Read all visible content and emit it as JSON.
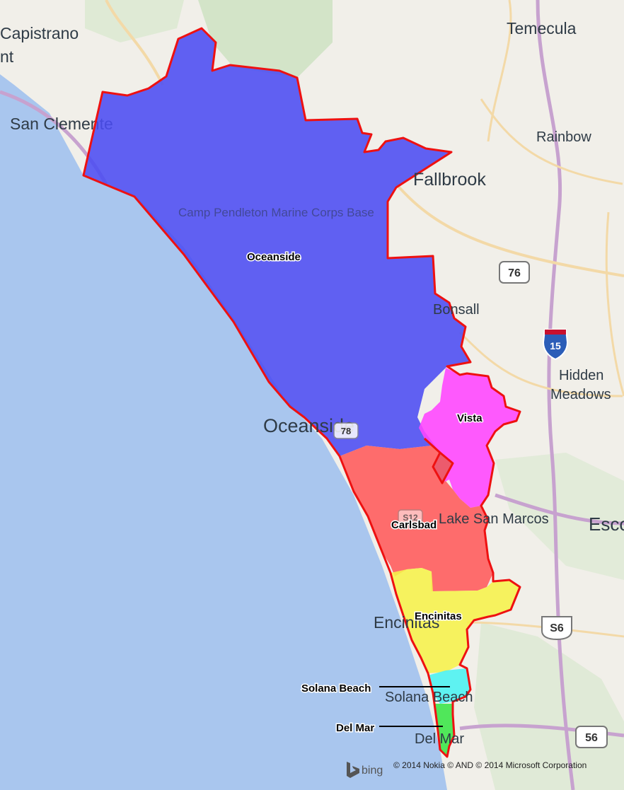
{
  "regions": [
    {
      "name": "Oceanside",
      "color": "#4b4cf2"
    },
    {
      "name": "Vista",
      "color": "#ff44ff"
    },
    {
      "name": "Carlsbad",
      "color": "#ff5a5a"
    },
    {
      "name": "Encinitas",
      "color": "#f6f24a"
    },
    {
      "name": "Solana Beach",
      "color": "#4ef2f2"
    },
    {
      "name": "Del Mar",
      "color": "#3ee64a"
    }
  ],
  "boundary_color": "#ee1111",
  "basemap_places": {
    "capistrano": "Capistrano",
    "capistrano_suffix": "nt",
    "san_clemente": "San Clemente",
    "temecula": "Temecula",
    "rainbow": "Rainbow",
    "fallbrook": "Fallbrook",
    "camp_pendleton": "Camp Pendleton Marine Corps Base",
    "bonsall": "Bonsall",
    "hidden": "Hidden",
    "meadows": "Meadows",
    "oceanside_city": "Oceanside",
    "lake_san_marcos": "Lake San Marcos",
    "esco": "Esco",
    "encinitas_city": "Encinitas",
    "solana_beach_city": "Solana Beach",
    "del_mar_city": "Del Mar"
  },
  "routes": {
    "r76": "76",
    "i15": "15",
    "r78": "78",
    "s6": "S6",
    "s56": "56",
    "s12": "S12"
  },
  "attribution": {
    "logo": "bing",
    "credit": "© 2014 Nokia © AND © 2014 Microsoft Corporation"
  }
}
